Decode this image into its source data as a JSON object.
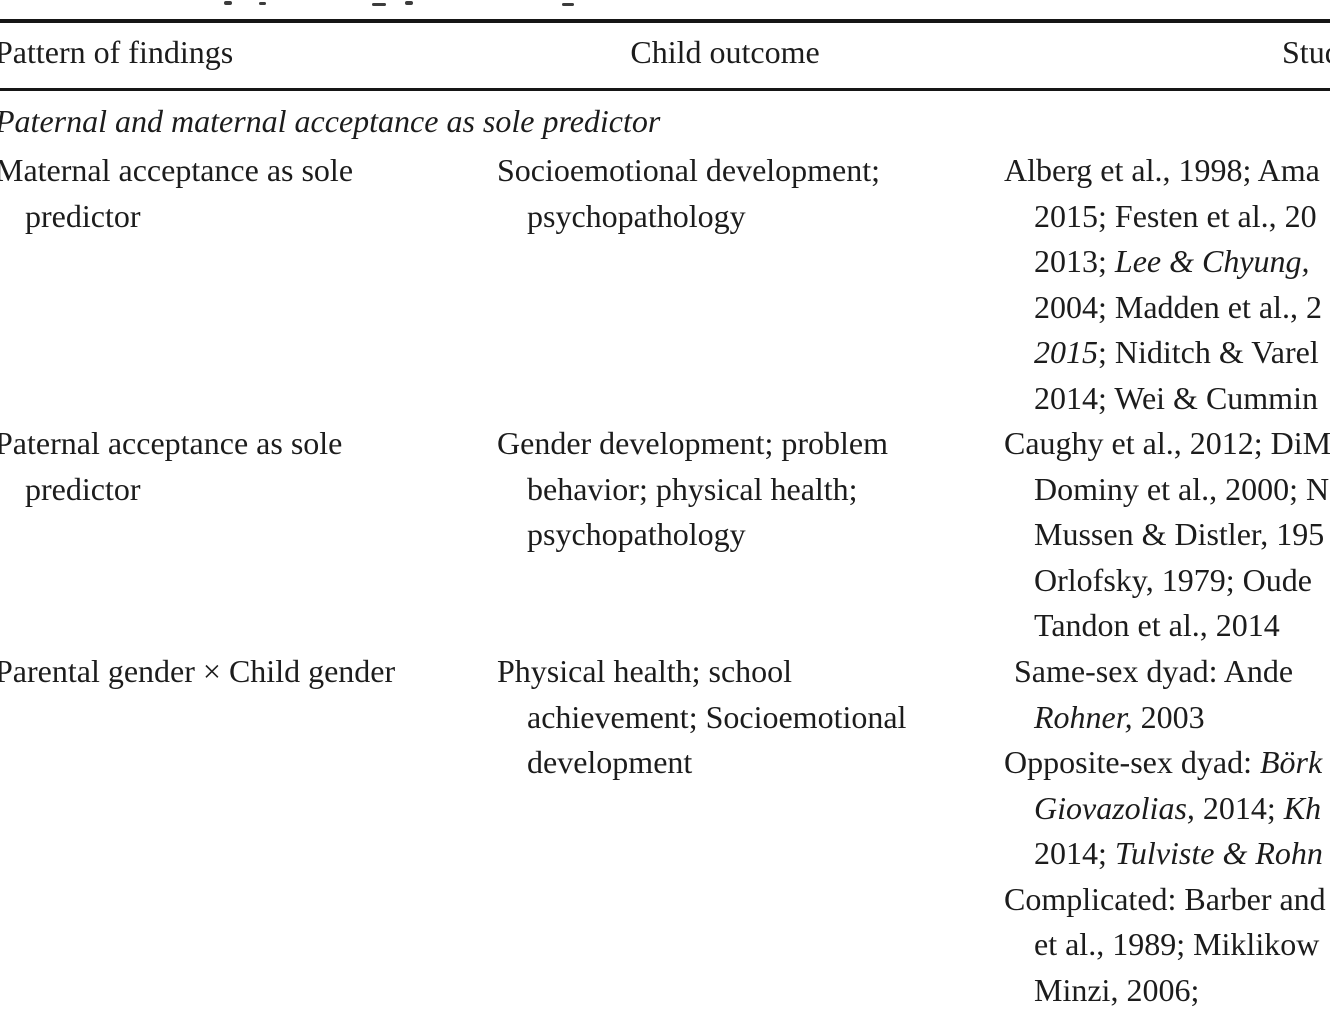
{
  "table_header": {
    "pattern": "Pattern of findings",
    "outcome": "Child outcome",
    "studies": "Studies"
  },
  "section_heading": "Paternal and maternal acceptance as sole predictor",
  "rows": [
    {
      "pattern": [
        {
          "ind": "first",
          "segs": [
            {
              "t": "Maternal acceptance as sole"
            }
          ]
        },
        {
          "ind": "cont",
          "segs": [
            {
              "t": "predictor"
            }
          ]
        }
      ],
      "outcome": [
        {
          "ind": "first",
          "segs": [
            {
              "t": "Socioemotional development;"
            }
          ]
        },
        {
          "ind": "cont",
          "segs": [
            {
              "t": "psychopathology"
            }
          ]
        }
      ],
      "studies": [
        {
          "ind": "first",
          "segs": [
            {
              "t": "Alberg et al., 1998; Ama"
            }
          ]
        },
        {
          "ind": "cont",
          "segs": [
            {
              "t": "2015; Festen et al., 20"
            }
          ]
        },
        {
          "ind": "cont",
          "segs": [
            {
              "t": "2013; "
            },
            {
              "t": "Lee & Chyung,",
              "i": true
            }
          ]
        },
        {
          "ind": "cont",
          "segs": [
            {
              "t": "2004; Madden et al., 2"
            }
          ]
        },
        {
          "ind": "cont",
          "segs": [
            {
              "t": "2015",
              "i": true
            },
            {
              "t": "; Niditch & Varel"
            }
          ]
        },
        {
          "ind": "cont",
          "segs": [
            {
              "t": "2014; Wei & Cummin"
            }
          ]
        }
      ]
    },
    {
      "pattern": [
        {
          "ind": "first",
          "segs": [
            {
              "t": "Paternal acceptance as sole"
            }
          ]
        },
        {
          "ind": "cont",
          "segs": [
            {
              "t": "predictor"
            }
          ]
        }
      ],
      "outcome": [
        {
          "ind": "first",
          "segs": [
            {
              "t": "Gender development; problem"
            }
          ]
        },
        {
          "ind": "cont",
          "segs": [
            {
              "t": "behavior; physical health;"
            }
          ]
        },
        {
          "ind": "cont",
          "segs": [
            {
              "t": "psychopathology"
            }
          ]
        }
      ],
      "studies": [
        {
          "ind": "first",
          "segs": [
            {
              "t": "Caughy et al., 2012; DiM"
            }
          ]
        },
        {
          "ind": "cont",
          "segs": [
            {
              "t": "Dominy et al., 2000; N"
            }
          ]
        },
        {
          "ind": "cont",
          "segs": [
            {
              "t": "Mussen & Distler, 195"
            }
          ]
        },
        {
          "ind": "cont",
          "segs": [
            {
              "t": "Orlofsky, 1979; Oude"
            }
          ]
        },
        {
          "ind": "cont",
          "segs": [
            {
              "t": "Tandon et al., 2014"
            }
          ]
        }
      ]
    },
    {
      "pattern": [
        {
          "ind": "first",
          "segs": [
            {
              "t": "Parental gender × Child gender"
            }
          ]
        }
      ],
      "outcome": [
        {
          "ind": "first",
          "segs": [
            {
              "t": "Physical health; school"
            }
          ]
        },
        {
          "ind": "cont",
          "segs": [
            {
              "t": "achievement; Socioemotional"
            }
          ]
        },
        {
          "ind": "cont",
          "segs": [
            {
              "t": "development"
            }
          ]
        }
      ],
      "studies": [
        {
          "ind": "first-sp",
          "segs": [
            {
              "t": "Same-sex dyad: Ande"
            }
          ]
        },
        {
          "ind": "cont",
          "segs": [
            {
              "t": "Rohner,",
              "i": true
            },
            {
              "t": " 2003"
            }
          ]
        },
        {
          "ind": "first",
          "segs": [
            {
              "t": "Opposite-sex dyad: "
            },
            {
              "t": "Börk",
              "i": true
            }
          ]
        },
        {
          "ind": "cont",
          "segs": [
            {
              "t": "Giovazolias,",
              "i": true
            },
            {
              "t": " 2014; "
            },
            {
              "t": "Kh",
              "i": true
            }
          ]
        },
        {
          "ind": "cont",
          "segs": [
            {
              "t": "2014; "
            },
            {
              "t": "Tulviste & Rohn",
              "i": true
            }
          ]
        },
        {
          "ind": "first",
          "segs": [
            {
              "t": "Complicated: Barber and"
            }
          ]
        },
        {
          "ind": "cont",
          "segs": [
            {
              "t": "et al., 1989; Miklikow"
            }
          ]
        },
        {
          "ind": "cont",
          "segs": [
            {
              "t": "Minzi, 2006;"
            }
          ]
        }
      ]
    }
  ]
}
